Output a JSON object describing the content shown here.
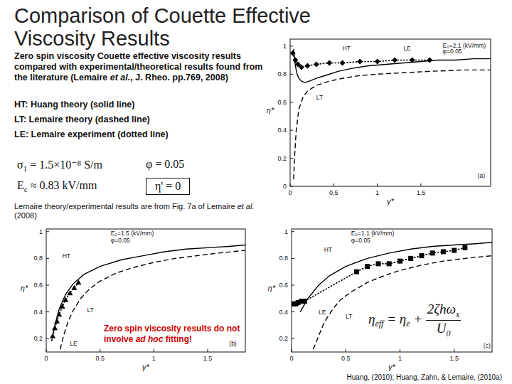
{
  "slide": {
    "title": [
      "Comparison of Couette Effective",
      "Viscosity Results"
    ],
    "intro": {
      "before": "Zero spin viscosity Couette effective viscosity results compared with experimental/theoretical results found from the literature (Lemaire ",
      "italic": "et al.",
      "after": ", J. Rheo. pp.769, 2008)"
    },
    "legend_lines": [
      "HT: Huang theory (solid line)",
      "LT: Lemaire theory (dashed line)",
      "LE: Lemaire experiment (dotted line)"
    ],
    "params": [
      {
        "text": "σ",
        "sub": "1",
        "after": " = 1.5×10⁻⁸ S/m"
      },
      {
        "text": "φ = 0.05"
      },
      {
        "text": "E",
        "sub": "c",
        "after": " ≈ 0.83 kV/mm"
      },
      {
        "text": "η' = 0"
      }
    ],
    "source_note": {
      "before": "Lemaire theory/experimental results are from Fig. 7a of Lemaire ",
      "italic": "et al.",
      "after": " (2008)"
    },
    "highlight": {
      "before": "Zero spin viscosity results do not involve ",
      "italic": "ad hoc",
      "after": " fitting!"
    },
    "formula": {
      "lhs": "η",
      "lhs_sub": "eff",
      "mid": " = η",
      "mid_sub": "e",
      "plus": " + ",
      "num": "2ζhω",
      "num_sub": "x",
      "den": "U",
      "den_sub": "0"
    },
    "citation": "Huang, (2010); Huang, Zahn, & Lemaire, (2010a)"
  },
  "chart_data": [
    {
      "type": "line",
      "x_label": "γ*",
      "y_label": "η*",
      "xlim": [
        0,
        2.3
      ],
      "xticks": [
        0,
        0.5,
        1,
        1.5
      ],
      "ylim": [
        0,
        1.05
      ],
      "yticks": [
        0,
        0.2,
        0.4,
        0.6,
        0.8,
        1
      ],
      "series": [
        {
          "name": "HT",
          "color": "#000000",
          "line_style": "solid",
          "marker": "none",
          "x": [
            0.04,
            0.06,
            0.08,
            0.1,
            0.13,
            0.17,
            0.22,
            0.3,
            0.4,
            0.55,
            0.7,
            0.9,
            1.1,
            1.3,
            1.5,
            1.7,
            1.9,
            2.1,
            2.3
          ],
          "values": [
            0.98,
            0.86,
            0.8,
            0.77,
            0.75,
            0.74,
            0.75,
            0.77,
            0.79,
            0.82,
            0.84,
            0.86,
            0.87,
            0.88,
            0.89,
            0.9,
            0.9,
            0.91,
            0.91
          ]
        },
        {
          "name": "LE",
          "color": "#000000",
          "line_style": "dotted",
          "marker": "diamond",
          "x": [
            0.03,
            0.06,
            0.09,
            0.13,
            0.2,
            0.3,
            0.45,
            0.6,
            0.8,
            1.0,
            1.2,
            1.4,
            1.6
          ],
          "values": [
            0.95,
            0.9,
            0.87,
            0.85,
            0.86,
            0.87,
            0.88,
            0.88,
            0.89,
            0.89,
            0.9,
            0.9,
            0.9
          ]
        },
        {
          "name": "LT",
          "color": "#000000",
          "line_style": "dashed",
          "marker": "none",
          "x": [
            0.04,
            0.05,
            0.07,
            0.1,
            0.15,
            0.2,
            0.3,
            0.45,
            0.6,
            0.8,
            1.0,
            1.3,
            1.6,
            2.0,
            2.3
          ],
          "values": [
            0.05,
            0.2,
            0.4,
            0.55,
            0.64,
            0.68,
            0.72,
            0.75,
            0.77,
            0.79,
            0.8,
            0.81,
            0.82,
            0.83,
            0.83
          ]
        }
      ],
      "annotations": [
        {
          "text": "HT",
          "x": 0.6,
          "y": 0.97
        },
        {
          "text": "LE",
          "x": 1.3,
          "y": 0.97
        },
        {
          "text": "LT",
          "x": 0.3,
          "y": 0.62
        },
        {
          "text": "E₀=2.1 (kV/mm)",
          "x": 1.75,
          "y": 0.99
        },
        {
          "text": "φ=0.05",
          "x": 1.75,
          "y": 0.95
        },
        {
          "text": "(a)",
          "x": 2.15,
          "y": 0.06
        }
      ]
    },
    {
      "type": "line",
      "x_label": "γ*",
      "y_label": "η*",
      "xlim": [
        0,
        1.85
      ],
      "xticks": [
        0,
        0.5,
        1,
        1.5
      ],
      "ylim": [
        0.1,
        1.02
      ],
      "yticks": [
        0.2,
        0.4,
        0.6,
        0.8,
        1
      ],
      "series": [
        {
          "name": "HT",
          "color": "#000000",
          "line_style": "solid",
          "marker": "none",
          "x": [
            0.05,
            0.08,
            0.12,
            0.18,
            0.25,
            0.35,
            0.5,
            0.7,
            0.9,
            1.1,
            1.3,
            1.5,
            1.7,
            1.85
          ],
          "values": [
            0.18,
            0.3,
            0.42,
            0.53,
            0.61,
            0.68,
            0.74,
            0.79,
            0.82,
            0.85,
            0.87,
            0.88,
            0.89,
            0.9
          ]
        },
        {
          "name": "LE",
          "color": "#000000",
          "line_style": "dotted",
          "marker": "triangle",
          "x": [
            0.06,
            0.08,
            0.1,
            0.12,
            0.15,
            0.18,
            0.22,
            0.26,
            0.3
          ],
          "values": [
            0.22,
            0.28,
            0.33,
            0.38,
            0.44,
            0.49,
            0.54,
            0.58,
            0.62
          ]
        },
        {
          "name": "LT",
          "color": "#000000",
          "line_style": "dashed",
          "marker": "none",
          "x": [
            0.13,
            0.16,
            0.2,
            0.25,
            0.32,
            0.4,
            0.5,
            0.65,
            0.8,
            1.0,
            1.2,
            1.4,
            1.6,
            1.85
          ],
          "values": [
            0.12,
            0.22,
            0.32,
            0.41,
            0.5,
            0.57,
            0.63,
            0.69,
            0.73,
            0.77,
            0.8,
            0.82,
            0.84,
            0.86
          ]
        }
      ],
      "annotations": [
        {
          "text": "HT",
          "x": 0.15,
          "y": 0.8
        },
        {
          "text": "LE",
          "x": 0.22,
          "y": 0.15
        },
        {
          "text": "LT",
          "x": 0.38,
          "y": 0.4
        },
        {
          "text": "E₀=1.5 (kV/mm)",
          "x": 0.6,
          "y": 0.97
        },
        {
          "text": "φ=0.05",
          "x": 0.6,
          "y": 0.92
        },
        {
          "text": "(b)",
          "x": 1.7,
          "y": 0.15
        }
      ]
    },
    {
      "type": "line",
      "x_label": "γ*",
      "y_label": "η*",
      "xlim": [
        0,
        1.85
      ],
      "xticks": [
        0,
        0.5,
        1,
        1.5
      ],
      "ylim": [
        0.1,
        1.02
      ],
      "yticks": [
        0.2,
        0.4,
        0.6,
        0.8,
        1
      ],
      "series": [
        {
          "name": "HT",
          "color": "#000000",
          "line_style": "solid",
          "marker": "none",
          "x": [
            0.08,
            0.15,
            0.25,
            0.35,
            0.5,
            0.7,
            0.9,
            1.1,
            1.3,
            1.5,
            1.7,
            1.85
          ],
          "values": [
            0.4,
            0.5,
            0.6,
            0.67,
            0.74,
            0.8,
            0.84,
            0.87,
            0.89,
            0.9,
            0.91,
            0.92
          ]
        },
        {
          "name": "LE",
          "color": "#000000",
          "line_style": "dotted",
          "marker": "square",
          "x": [
            0.02,
            0.04,
            0.06,
            0.09,
            0.12,
            0.6,
            0.7,
            0.8,
            0.9,
            1.0,
            1.1,
            1.2,
            1.3,
            1.4,
            1.5,
            1.6
          ],
          "values": [
            0.46,
            0.46,
            0.47,
            0.48,
            0.48,
            0.7,
            0.74,
            0.76,
            0.76,
            0.78,
            0.8,
            0.82,
            0.84,
            0.85,
            0.86,
            0.88
          ]
        },
        {
          "name": "LT",
          "color": "#000000",
          "line_style": "dashed",
          "marker": "none",
          "x": [
            0.2,
            0.25,
            0.3,
            0.38,
            0.45,
            0.55,
            0.7,
            0.85,
            1.0,
            1.2,
            1.4,
            1.6,
            1.85
          ],
          "values": [
            0.12,
            0.22,
            0.32,
            0.42,
            0.49,
            0.55,
            0.62,
            0.67,
            0.71,
            0.75,
            0.78,
            0.8,
            0.82
          ]
        }
      ],
      "annotations": [
        {
          "text": "HT",
          "x": 0.3,
          "y": 0.85
        },
        {
          "text": "LE",
          "x": 0.25,
          "y": 0.38
        },
        {
          "text": "LT",
          "x": 0.5,
          "y": 0.35
        },
        {
          "text": "E₀=1.1 (kV/mm)",
          "x": 0.55,
          "y": 0.97
        },
        {
          "text": "φ=0.05",
          "x": 0.55,
          "y": 0.92
        },
        {
          "text": "(c)",
          "x": 1.77,
          "y": 0.13
        }
      ]
    }
  ]
}
